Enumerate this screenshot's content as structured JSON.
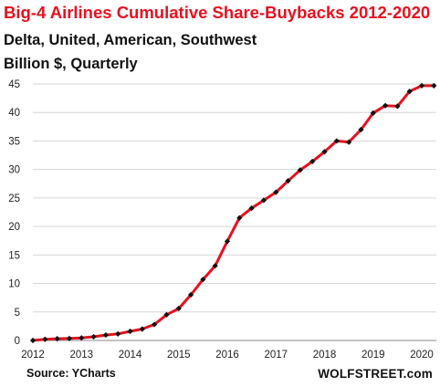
{
  "chart_data": {
    "type": "line",
    "title": "Big-4 Airlines Cumulative Share-Buybacks  2012-2020",
    "subtitle": "Delta, United, American, Southwest",
    "ylabel": "Billion $, Quarterly",
    "xlabel": "",
    "x_ticks": [
      "2012",
      "2013",
      "2014",
      "2015",
      "2016",
      "2017",
      "2018",
      "2019",
      "2020"
    ],
    "y_ticks": [
      0,
      5,
      10,
      15,
      20,
      25,
      30,
      35,
      40,
      45
    ],
    "xlim": [
      2012,
      2020.3
    ],
    "ylim": [
      0,
      45
    ],
    "grid": "horizontal",
    "legend": "none",
    "series": [
      {
        "color": "#e8101e",
        "marker_color": "#111111",
        "x": [
          2012.0,
          2012.25,
          2012.5,
          2012.75,
          2013.0,
          2013.25,
          2013.5,
          2013.75,
          2014.0,
          2014.25,
          2014.5,
          2014.75,
          2015.0,
          2015.25,
          2015.5,
          2015.75,
          2016.0,
          2016.25,
          2016.5,
          2016.75,
          2017.0,
          2017.25,
          2017.5,
          2017.75,
          2018.0,
          2018.25,
          2018.5,
          2018.75,
          2019.0,
          2019.25,
          2019.5,
          2019.75,
          2020.0,
          2020.25
        ],
        "values": [
          0.0,
          0.2,
          0.3,
          0.35,
          0.45,
          0.65,
          0.95,
          1.15,
          1.6,
          2.0,
          2.8,
          4.5,
          5.6,
          8.0,
          10.7,
          13.1,
          17.4,
          21.5,
          23.2,
          24.6,
          26.0,
          28.0,
          29.9,
          31.4,
          33.1,
          35.0,
          34.8,
          37.0,
          39.9,
          41.2,
          41.1,
          43.7,
          44.7,
          44.7
        ]
      }
    ]
  },
  "footer": {
    "source": "Source: YCharts",
    "brand": "WOLFSTREET.com"
  }
}
